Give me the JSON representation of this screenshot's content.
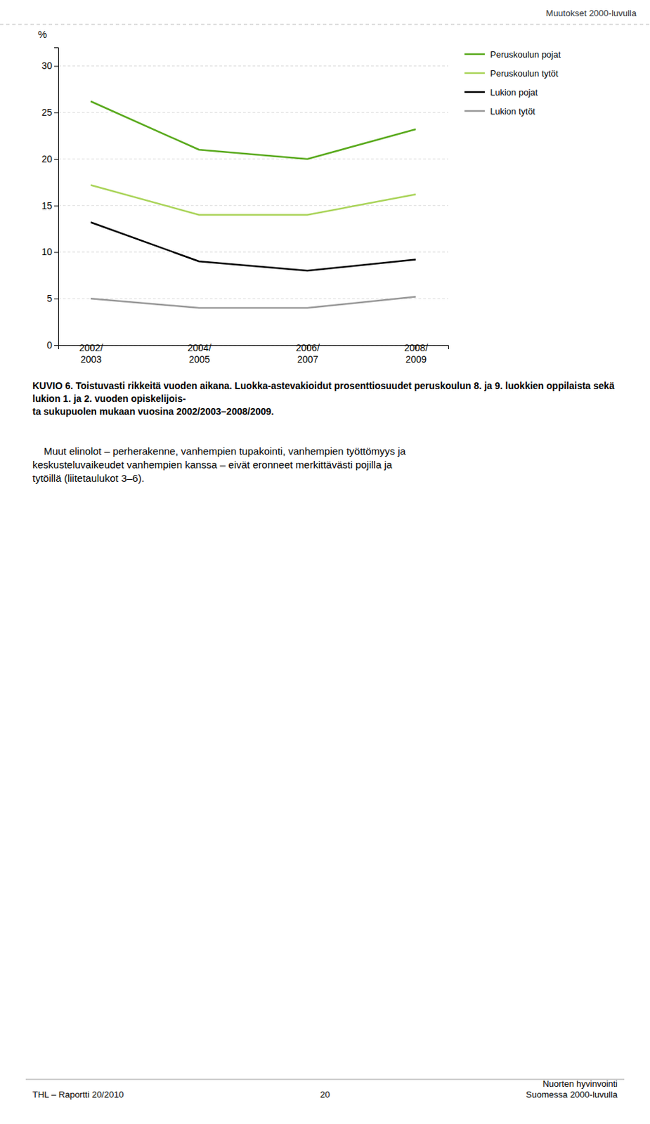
{
  "chart_data": {
    "type": "line",
    "categories": [
      "2002/\n2003",
      "2004/\n2005",
      "2006/\n2007",
      "2008/\n2009"
    ],
    "series": [
      {
        "name": "Peruskoulun pojat",
        "color": "#5aaa1e",
        "line_style": "solid",
        "values": [
          26.2,
          21.0,
          20.0,
          23.2
        ]
      },
      {
        "name": "Peruskoulun tytöt",
        "color": "#aad45a",
        "line_style": "solid",
        "values": [
          17.2,
          14.0,
          14.0,
          16.2
        ]
      },
      {
        "name": "Lukion pojat",
        "color": "#000000",
        "line_style": "solid",
        "values": [
          13.2,
          9.0,
          8.0,
          9.2
        ]
      },
      {
        "name": "Lukion tytöt",
        "color": "#999999",
        "line_style": "solid",
        "values": [
          5.0,
          4.0,
          4.0,
          5.2
        ]
      }
    ],
    "y_label": "%",
    "ylim": [
      0,
      32
    ],
    "yticks": [
      0,
      5,
      10,
      15,
      20,
      25,
      30
    ],
    "grid": true,
    "legend": "right",
    "annotations": [
      "Muutokset 2000-luvulla",
      "KUVIO 6. Toistuvasti rikkeitä vuoden aikana. Luokka-astevakioidut prosenttiosuudet peruskoulun 8. ja 9. luokkien oppilaista sekä lukion 1. ja 2. vuoden opiskelijois-",
      "ta sukupuolen mukaan vuosina 2002/2003–2008/2009.",
      "    Muut elinolot – perherakenne, vanhempien tupakointi, vanhempien työttömyys ja",
      "keskusteluvaikeudet vanhempien kanssa – eivät eronneet merkittävästi pojilla ja",
      "tytöillä (liitetaulukot 3–6).",
      "THL – Raportti 20/2010",
      "20",
      "Nuorten hyvinvointi\nSuomessa 2000-luvulla"
    ]
  }
}
